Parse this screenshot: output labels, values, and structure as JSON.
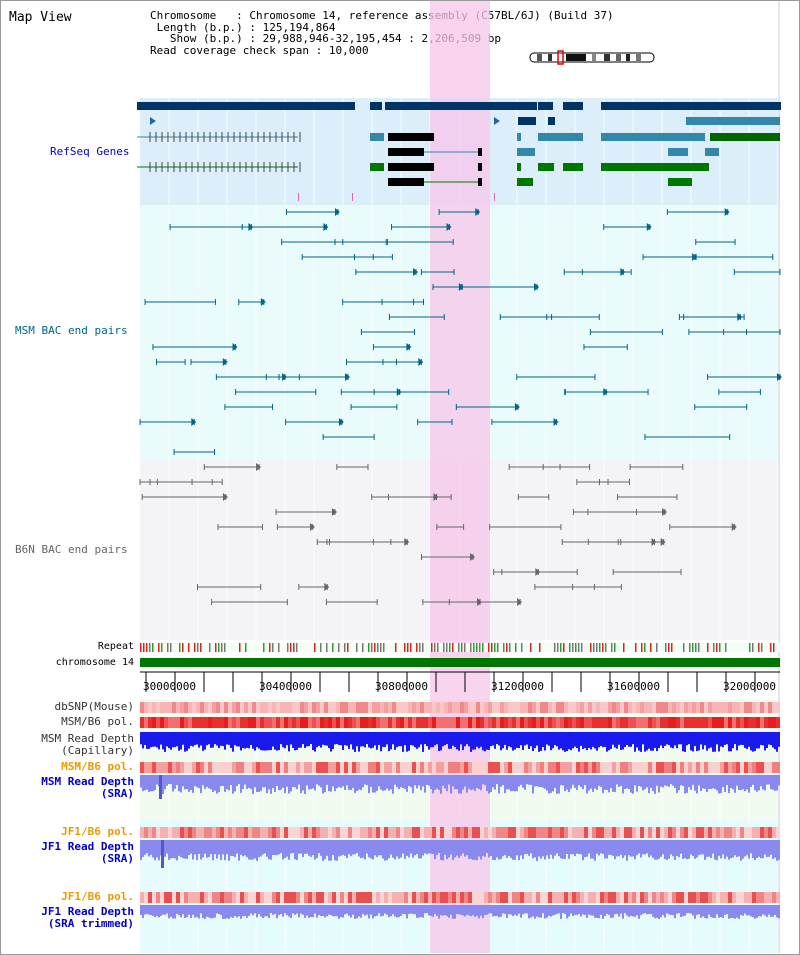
{
  "view_title": "Map View",
  "header": {
    "chromosome_key": "Chromosome",
    "chromosome_value": "Chromosome 14, reference assembly (C57BL/6J) (Build 37)",
    "length_key": "Length (b.p.)",
    "length_value": "125,194,864",
    "show_key": "Show (b.p.)",
    "show_value": "29,988,946-32,195,454 : 2,206,509 bp",
    "coverage_key": "Read coverage check span",
    "coverage_value": "10,000"
  },
  "tracks": {
    "refseq": "RefSeq Genes",
    "msm_bac": "MSM BAC end pairs",
    "b6n_bac": "B6N BAC end pairs",
    "repeat": "Repeat",
    "chromosome": "chromosome 14",
    "dbsnp": "dbSNP(Mouse)",
    "msm_b6_pol_1": "MSM/B6 pol.",
    "msm_depth_cap_1": "MSM Read Depth",
    "msm_depth_cap_2": "(Capillary)",
    "msm_b6_pol_2": "MSM/B6 pol.",
    "msm_depth_sra_1": "MSM Read Depth",
    "msm_depth_sra_2": "(SRA)",
    "jf1_b6_pol_1": "JF1/B6 pol.",
    "jf1_depth_sra_1": "JF1 Read Depth",
    "jf1_depth_sra_2": "(SRA)",
    "jf1_b6_pol_2": "JF1/B6 pol.",
    "jf1_depth_trim_1": "JF1 Read Depth",
    "jf1_depth_trim_2": "(SRA trimmed)"
  },
  "axis": {
    "ticks": [
      "30000000",
      "30400000",
      "30800000",
      "31200000",
      "31600000",
      "32000000"
    ]
  },
  "colors": {
    "refseq_label": "#0000cc",
    "msm_label": "#006688",
    "b6n_label": "#666666",
    "pol_label": "#ee9900",
    "depth_label": "#0000cc",
    "highlight": "#f7d1ee",
    "chromosome_bar": "#007700"
  }
}
